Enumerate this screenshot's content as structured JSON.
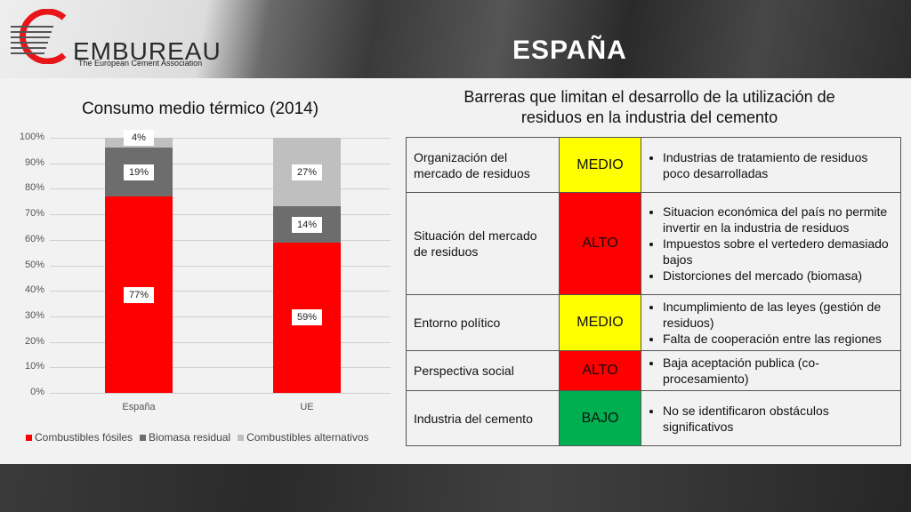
{
  "header": {
    "logo_text": "EMBUREAU",
    "logo_subtitle": "The European Cement Association",
    "title": "ESPAÑA"
  },
  "colors": {
    "fossil": "#ff0000",
    "biomass": "#6d6d6d",
    "alternative": "#bfbfbf",
    "level_medio": "#ffff00",
    "level_alto": "#ff0000",
    "level_bajo": "#00b050"
  },
  "chart_data": {
    "type": "bar",
    "stacked": true,
    "percent": true,
    "title": "Consumo medio térmico (2014)",
    "categories": [
      "España",
      "UE"
    ],
    "series": [
      {
        "name": "Combustibles fósiles",
        "values": [
          77,
          59
        ],
        "labels": [
          "77%",
          "59%"
        ]
      },
      {
        "name": "Biomasa residual",
        "values": [
          19,
          14
        ],
        "labels": [
          "19%",
          "14%"
        ]
      },
      {
        "name": "Combustibles alternativos",
        "values": [
          4,
          27
        ],
        "labels": [
          "4%",
          "27%"
        ]
      }
    ],
    "ylim": [
      0,
      100
    ],
    "yticks": [
      "0%",
      "10%",
      "20%",
      "30%",
      "40%",
      "50%",
      "60%",
      "70%",
      "80%",
      "90%",
      "100%"
    ],
    "grid": true,
    "legend": "bottom"
  },
  "barriers": {
    "title": "Barreras que limitan el desarrollo de la utilización de residuos en la industria del cemento",
    "rows": [
      {
        "category": "Organización del mercado de residuos",
        "level": "MEDIO",
        "level_color": "#ffff00",
        "items": [
          "Industrias de tratamiento de residuos poco desarrolladas"
        ]
      },
      {
        "category": "Situación del mercado de residuos",
        "level": "ALTO",
        "level_color": "#ff0000",
        "items": [
          "Situacion económica del país no permite invertir en la industria de residuos",
          "Impuestos sobre el vertedero demasiado bajos",
          "Distorciones del mercado (biomasa)"
        ]
      },
      {
        "category": "Entorno político",
        "level": "MEDIO",
        "level_color": "#ffff00",
        "items": [
          "Incumplimiento de las leyes (gestión de residuos)",
          "Falta de cooperación entre las regiones"
        ]
      },
      {
        "category": "Perspectiva social",
        "level": "ALTO",
        "level_color": "#ff0000",
        "items": [
          "Baja aceptación publica (co-procesamiento)"
        ]
      },
      {
        "category": "Industria del cemento",
        "level": "BAJO",
        "level_color": "#00b050",
        "items": [
          "No se identificaron obstáculos significativos"
        ]
      }
    ]
  }
}
